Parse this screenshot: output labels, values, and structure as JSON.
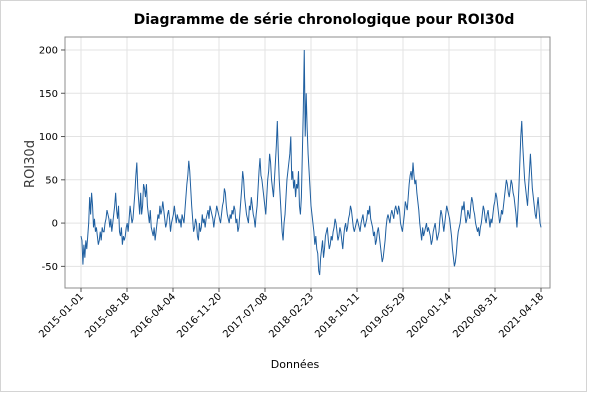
{
  "chart_data": {
    "type": "line",
    "title": "Diagramme de série chronologique pour ROI30d",
    "xlabel": "Données",
    "ylabel": "ROI30d",
    "ylim": [
      -75,
      215
    ],
    "yticks": [
      -50,
      0,
      50,
      100,
      150,
      200
    ],
    "xticks": [
      "2015-01-01",
      "2015-08-18",
      "2016-04-04",
      "2016-11-20",
      "2017-07-08",
      "2018-02-23",
      "2018-10-11",
      "2019-05-29",
      "2020-01-14",
      "2020-08-31",
      "2021-04-18"
    ],
    "grid": true,
    "color": "#1f5fa0",
    "series": [
      {
        "x_range": [
          "2015-01-01",
          "2021-04-18"
        ],
        "values": [
          -15,
          -20,
          -48,
          -25,
          -40,
          -20,
          -30,
          -15,
          0,
          30,
          10,
          35,
          20,
          -5,
          5,
          -10,
          -5,
          -15,
          -25,
          -20,
          -10,
          -20,
          -5,
          -10,
          -10,
          0,
          5,
          15,
          10,
          5,
          -5,
          5,
          -10,
          0,
          10,
          20,
          35,
          15,
          5,
          20,
          -10,
          -15,
          -5,
          -25,
          -15,
          -20,
          -15,
          -5,
          0,
          -10,
          5,
          20,
          10,
          0,
          5,
          20,
          35,
          55,
          70,
          40,
          25,
          10,
          35,
          10,
          20,
          45,
          40,
          30,
          45,
          20,
          10,
          0,
          15,
          -5,
          -10,
          -15,
          -5,
          -20,
          -10,
          0,
          10,
          5,
          20,
          10,
          15,
          25,
          15,
          5,
          -5,
          0,
          10,
          15,
          5,
          -10,
          0,
          5,
          10,
          20,
          10,
          0,
          10,
          5,
          0,
          5,
          -5,
          10,
          5,
          0,
          15,
          30,
          45,
          55,
          72,
          60,
          40,
          20,
          5,
          -10,
          -5,
          5,
          0,
          -15,
          -20,
          0,
          -10,
          -5,
          10,
          0,
          5,
          -5,
          5,
          10,
          15,
          5,
          20,
          15,
          10,
          5,
          -5,
          5,
          10,
          20,
          15,
          10,
          5,
          0,
          10,
          20,
          25,
          40,
          35,
          20,
          10,
          5,
          0,
          10,
          5,
          15,
          10,
          20,
          15,
          0,
          5,
          -10,
          -5,
          10,
          25,
          40,
          60,
          50,
          30,
          20,
          10,
          5,
          0,
          20,
          15,
          30,
          20,
          10,
          5,
          -5,
          10,
          20,
          40,
          60,
          75,
          55,
          50,
          40,
          30,
          20,
          10,
          30,
          50,
          60,
          80,
          70,
          50,
          40,
          30,
          50,
          70,
          90,
          118,
          80,
          50,
          30,
          10,
          -10,
          -20,
          0,
          10,
          30,
          50,
          60,
          70,
          80,
          100,
          50,
          60,
          40,
          50,
          30,
          45,
          40,
          60,
          20,
          10,
          30,
          80,
          130,
          200,
          100,
          150,
          110,
          80,
          60,
          40,
          20,
          10,
          0,
          -10,
          -25,
          -15,
          -30,
          -35,
          -55,
          -60,
          -40,
          -30,
          -20,
          -40,
          -30,
          -15,
          -10,
          -5,
          -20,
          -30,
          -25,
          -15,
          -20,
          -10,
          -5,
          5,
          0,
          -10,
          -20,
          -15,
          -5,
          -10,
          -20,
          -30,
          -15,
          -5,
          0,
          -10,
          -5,
          5,
          10,
          20,
          15,
          5,
          -5,
          -10,
          -5,
          0,
          5,
          0,
          -5,
          -10,
          0,
          5,
          10,
          0,
          -5,
          0,
          5,
          15,
          10,
          20,
          5,
          0,
          -5,
          -15,
          -10,
          -25,
          -20,
          -10,
          -5,
          -15,
          -25,
          -35,
          -45,
          -40,
          -30,
          -20,
          -5,
          5,
          10,
          5,
          0,
          10,
          15,
          10,
          5,
          15,
          20,
          15,
          10,
          20,
          15,
          0,
          -5,
          -10,
          0,
          10,
          25,
          20,
          15,
          30,
          45,
          55,
          60,
          50,
          70,
          55,
          45,
          50,
          35,
          25,
          15,
          0,
          -10,
          -20,
          -5,
          -15,
          -10,
          -5,
          0,
          -10,
          -5,
          -10,
          -15,
          -25,
          -20,
          -10,
          -5,
          0,
          -10,
          -20,
          -15,
          -10,
          5,
          15,
          10,
          0,
          -10,
          0,
          10,
          20,
          15,
          10,
          5,
          -5,
          -15,
          -30,
          -40,
          -50,
          -45,
          -35,
          -20,
          -10,
          -5,
          0,
          10,
          20,
          15,
          25,
          10,
          0,
          5,
          15,
          10,
          5,
          20,
          30,
          25,
          15,
          10,
          0,
          -5,
          -10,
          -5,
          -15,
          -5,
          0,
          10,
          20,
          15,
          5,
          0,
          10,
          15,
          5,
          -5,
          5,
          0,
          10,
          20,
          25,
          35,
          30,
          20,
          10,
          0,
          5,
          15,
          10,
          20,
          30,
          40,
          50,
          45,
          35,
          30,
          40,
          50,
          45,
          35,
          30,
          20,
          10,
          -5,
          15,
          40,
          70,
          100,
          118,
          90,
          70,
          50,
          40,
          30,
          20,
          40,
          60,
          80,
          60,
          40,
          30,
          20,
          10,
          5,
          20,
          30,
          15,
          0,
          -5
        ]
      }
    ]
  }
}
